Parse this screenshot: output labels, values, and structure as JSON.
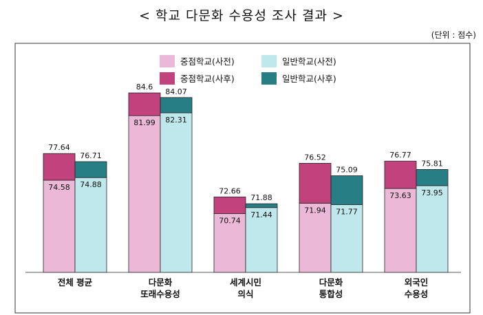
{
  "chart_data": {
    "type": "bar",
    "title": "< 학교 다문화 수용성 조사 결과 >",
    "unit_note": "(단위 : 점수)",
    "categories": [
      [
        "전체 평균"
      ],
      [
        "다문화",
        "또래수용성"
      ],
      [
        "세계시민",
        "의식"
      ],
      [
        "다문화",
        "통합성"
      ],
      [
        "외국인",
        "수용성"
      ]
    ],
    "series": [
      {
        "name": "중점학교(사전)",
        "color": "#EBB8D8",
        "values": [
          74.58,
          81.99,
          70.74,
          71.94,
          73.63
        ]
      },
      {
        "name": "중점학교(사후)",
        "color": "#C2427E",
        "values": [
          77.64,
          84.6,
          72.66,
          76.52,
          76.77
        ]
      },
      {
        "name": "일반학교(사전)",
        "color": "#BFE8EC",
        "values": [
          74.88,
          82.31,
          71.44,
          71.77,
          73.95
        ]
      },
      {
        "name": "일반학교(사후)",
        "color": "#277E84",
        "values": [
          76.71,
          84.07,
          71.88,
          75.09,
          75.81
        ]
      }
    ],
    "value_labels": {
      "jp_pre": [
        "74.58",
        "81.99",
        "70.74",
        "71.94",
        "73.63"
      ],
      "jp_post": [
        "77.64",
        "84.6",
        "72.66",
        "76.52",
        "76.77"
      ],
      "ge_pre": [
        "74.88",
        "82.31",
        "71.44",
        "71.77",
        "73.95"
      ],
      "ge_post": [
        "76.71",
        "84.07",
        "71.88",
        "75.09",
        "75.81"
      ]
    },
    "ylim": [
      64,
      88
    ],
    "grid": false,
    "legend_position": "top-center"
  }
}
